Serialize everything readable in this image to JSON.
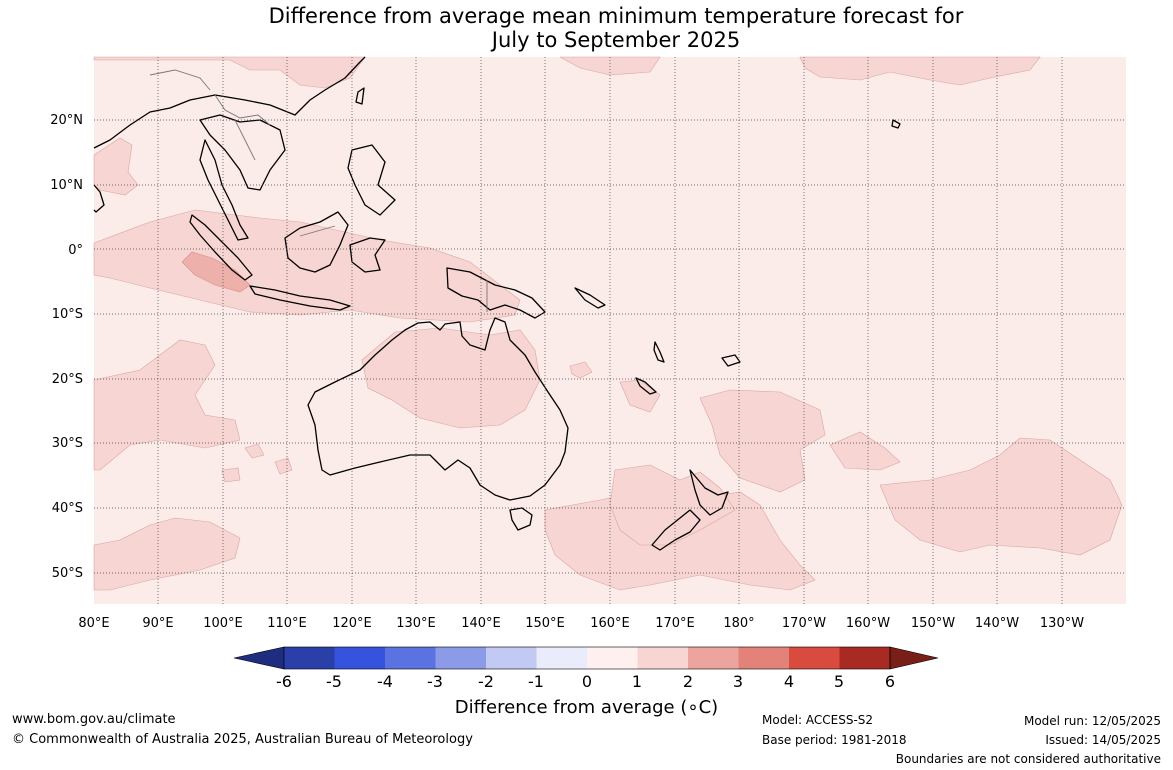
{
  "title": {
    "line1": "Difference from average mean minimum temperature forecast for",
    "line2": "July to September 2025"
  },
  "map": {
    "lat_labels": [
      "20°N",
      "10°N",
      "0°",
      "10°S",
      "20°S",
      "30°S",
      "40°S",
      "50°S"
    ],
    "lon_labels": [
      "80°E",
      "90°E",
      "100°E",
      "110°E",
      "120°E",
      "130°E",
      "140°E",
      "150°E",
      "160°E",
      "170°E",
      "180°",
      "170°W",
      "160°W",
      "150°W",
      "140°W",
      "130°W"
    ],
    "colors": {
      "ocean_background": "#fbebe9",
      "class_1_2": "#f6d5d2",
      "class_2_3": "#eeb0aa",
      "coastline": "#000000",
      "border": "#777777"
    }
  },
  "colorbar": {
    "title": "Difference from average (∘C)",
    "tick_labels": [
      "-6",
      "-5",
      "-4",
      "-3",
      "-2",
      "-1",
      "0",
      "1",
      "2",
      "3",
      "4",
      "5",
      "6"
    ],
    "colors": [
      "#1f2d80",
      "#2a3fa8",
      "#3553dc",
      "#5b73e0",
      "#8b9be8",
      "#c2c9f2",
      "#eaecfb",
      "#fdf0ee",
      "#f6d5d2",
      "#eba59e",
      "#e38279",
      "#d84b3e",
      "#a82a22",
      "#7a1f18"
    ]
  },
  "footer": {
    "url": "www.bom.gov.au/climate",
    "copyright": "© Commonwealth of Australia 2025, Australian Bureau of Meteorology",
    "model": "Model: ACCESS-S2",
    "base_period": "Base period: 1981-2018",
    "model_run": "Model run: 12/05/2025",
    "issued": "Issued: 14/05/2025",
    "disclaimer": "Boundaries are not considered authoritative"
  }
}
